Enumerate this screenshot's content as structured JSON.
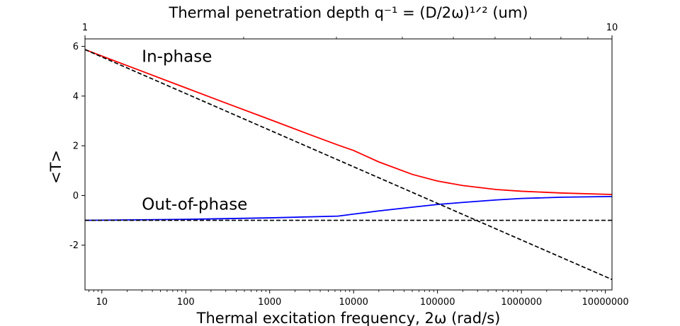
{
  "chart_data": {
    "type": "line",
    "title": "Thermal penetration depth q⁻¹ = (D/2ω)¹ᐟ² (um)",
    "xlabel": "Thermal excitation frequency, 2ω (rad/s)",
    "ylabel": "<T>",
    "xscale": "log",
    "xlim": [
      6.3,
      12000000
    ],
    "ylim": [
      -3.8,
      6.3
    ],
    "xticks": [
      {
        "value": 10,
        "label": "10"
      },
      {
        "value": 100,
        "label": "100"
      },
      {
        "value": 1000,
        "label": "1000"
      },
      {
        "value": 10000,
        "label": "10000"
      },
      {
        "value": 100000,
        "label": "100000"
      },
      {
        "value": 1000000,
        "label": "1000000"
      },
      {
        "value": 10000000,
        "label": "10000000"
      }
    ],
    "yticks": [
      {
        "value": -2,
        "label": "-2"
      },
      {
        "value": 0,
        "label": "0"
      },
      {
        "value": 2,
        "label": "2"
      },
      {
        "value": 4,
        "label": "4"
      },
      {
        "value": 6,
        "label": "6"
      }
    ],
    "top_axis": {
      "ticks": [
        {
          "value": 6.3,
          "label": "1"
        },
        {
          "value": 12000000,
          "label": "10"
        }
      ]
    },
    "annotations": [
      {
        "text": "In-phase",
        "x": 30,
        "y": 5.6
      },
      {
        "text": "Out-of-phase",
        "x": 30,
        "y": -0.35
      }
    ],
    "series": [
      {
        "color": "#ff0000",
        "style": "solid",
        "x": [
          6.3,
          10,
          30,
          100,
          300,
          1000,
          3000,
          6500,
          10000,
          20000,
          50000,
          100000,
          200000,
          500000,
          1000000,
          3000000,
          12000000
        ],
        "y": [
          5.87,
          5.61,
          5.0,
          4.33,
          3.72,
          3.06,
          2.45,
          2.03,
          1.81,
          1.35,
          0.85,
          0.58,
          0.4,
          0.24,
          0.17,
          0.1,
          0.04
        ]
      },
      {
        "color": "#0000ff",
        "style": "solid",
        "x": [
          6.3,
          100,
          1000,
          6500,
          20000,
          50000,
          100000,
          200000,
          500000,
          1000000,
          3000000,
          12000000
        ],
        "y": [
          -1.0,
          -0.96,
          -0.9,
          -0.83,
          -0.62,
          -0.47,
          -0.36,
          -0.28,
          -0.18,
          -0.12,
          -0.07,
          -0.04
        ]
      },
      {
        "color": "#000000",
        "style": "dashed",
        "x": [
          6.3,
          12000000
        ],
        "y": [
          5.87,
          -3.38
        ]
      },
      {
        "color": "#000000",
        "style": "dashed",
        "x": [
          6.3,
          12000000
        ],
        "y": [
          -1.0,
          -1.0
        ]
      }
    ]
  }
}
